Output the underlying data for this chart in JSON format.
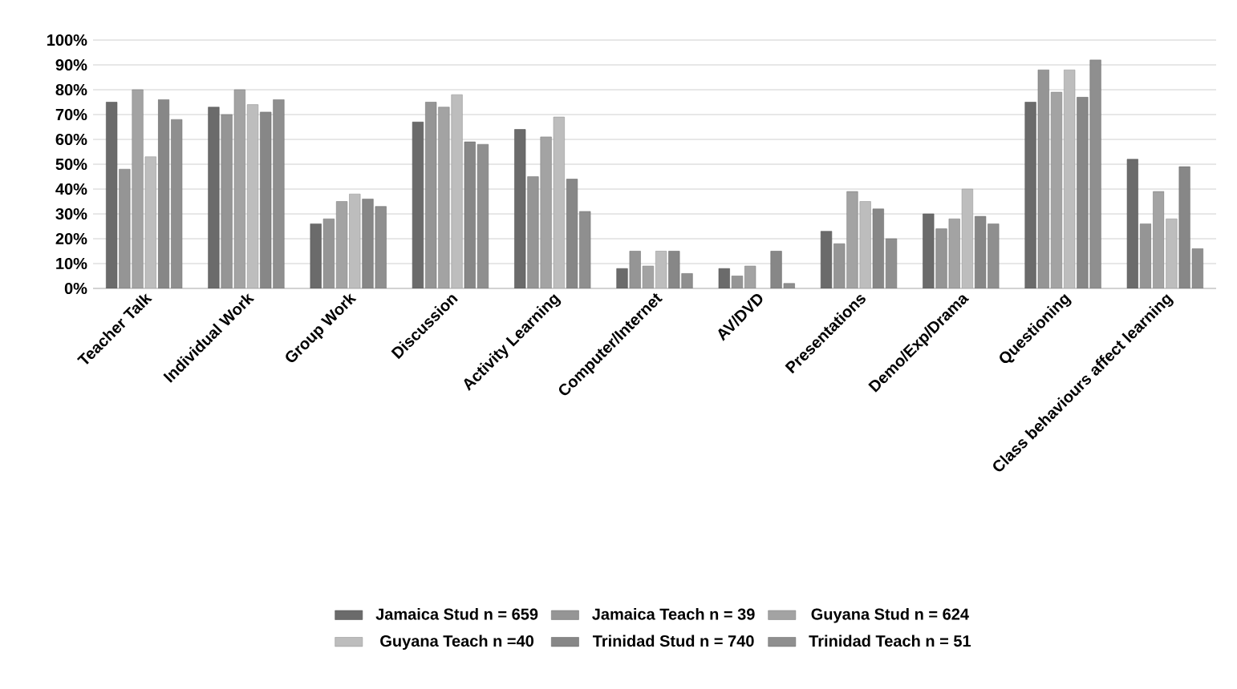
{
  "chart_data": {
    "type": "bar",
    "categories": [
      "Teacher Talk",
      "Individual Work",
      "Group Work",
      "Discussion",
      "Activity Learning",
      "Computer/Internet",
      "AV/DVD",
      "Presentations",
      "Demo/Exp/Drama",
      "Questioning",
      "Class behaviours affect learning"
    ],
    "series": [
      {
        "name": "Jamaica Stud n = 659",
        "color": "#6b6b6b",
        "values": [
          75,
          73,
          26,
          67,
          64,
          8,
          8,
          23,
          30,
          75,
          52
        ]
      },
      {
        "name": "Jamaica Teach n = 39",
        "color": "#959595",
        "values": [
          48,
          70,
          28,
          75,
          45,
          15,
          5,
          18,
          24,
          88,
          26
        ]
      },
      {
        "name": "Guyana Stud n = 624",
        "color": "#a3a3a3",
        "values": [
          80,
          80,
          35,
          73,
          61,
          9,
          9,
          39,
          28,
          79,
          39
        ]
      },
      {
        "name": "Guyana Teach n =40",
        "color": "#bdbdbd",
        "values": [
          53,
          74,
          38,
          78,
          69,
          15,
          null,
          35,
          40,
          88,
          28
        ]
      },
      {
        "name": "Trinidad Stud n = 740",
        "color": "#878787",
        "values": [
          76,
          71,
          36,
          59,
          44,
          15,
          15,
          32,
          29,
          77,
          49
        ]
      },
      {
        "name": "Trinidad Teach n = 51",
        "color": "#8f8f8f",
        "values": [
          68,
          76,
          33,
          58,
          31,
          6,
          2,
          20,
          26,
          92,
          16
        ]
      }
    ],
    "ylim": [
      0,
      100
    ],
    "yticks": [
      {
        "value": 0,
        "label": "0%"
      },
      {
        "value": 10,
        "label": "10%"
      },
      {
        "value": 20,
        "label": "20%"
      },
      {
        "value": 30,
        "label": "30%"
      },
      {
        "value": 40,
        "label": "40%"
      },
      {
        "value": 50,
        "label": "50%"
      },
      {
        "value": 60,
        "label": "60%"
      },
      {
        "value": 70,
        "label": "70%"
      },
      {
        "value": 80,
        "label": "80%"
      },
      {
        "value": 90,
        "label": "90%"
      },
      {
        "value": 100,
        "label": "100%"
      }
    ],
    "grid": "y",
    "legend": "bottom"
  }
}
